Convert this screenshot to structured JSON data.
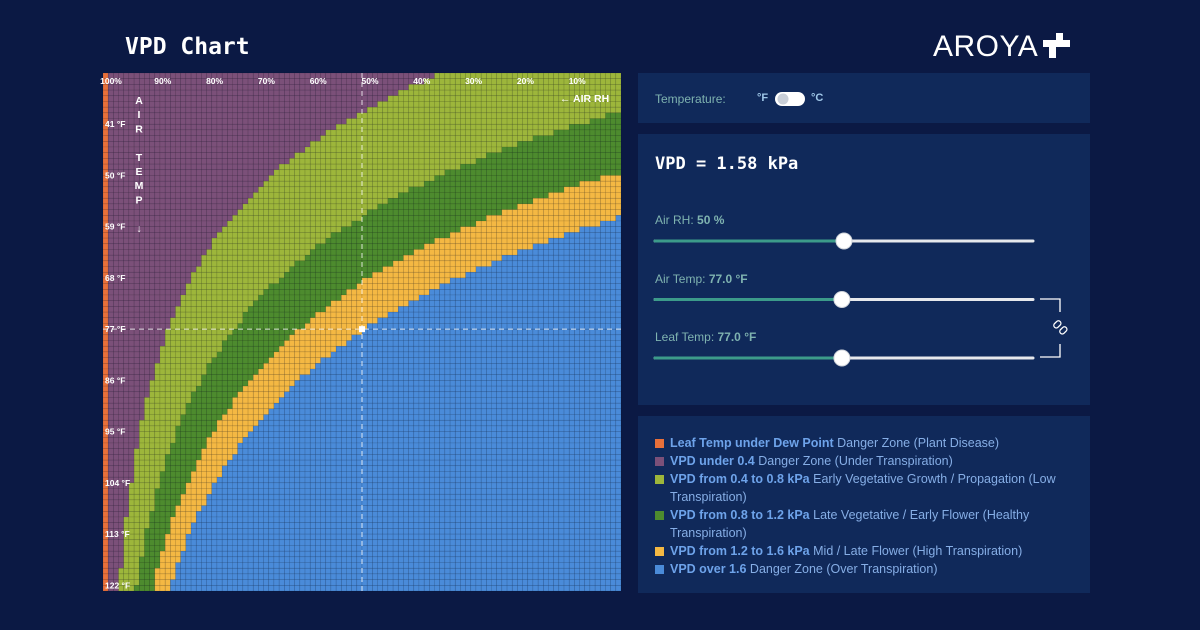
{
  "header": {
    "title": "VPD Chart",
    "logo": "AROYA"
  },
  "chart_data": {
    "type": "heatmap",
    "xlabel": "← AIR RH",
    "ylabel": "AIR TEMP ↓",
    "xlim": [
      100,
      0
    ],
    "ylim": [
      32,
      123
    ],
    "xticks": [
      {
        "value": 100,
        "label": "100%"
      },
      {
        "value": 90,
        "label": "90%"
      },
      {
        "value": 80,
        "label": "80%"
      },
      {
        "value": 70,
        "label": "70%"
      },
      {
        "value": 60,
        "label": "60%"
      },
      {
        "value": 50,
        "label": "50%"
      },
      {
        "value": 40,
        "label": "40%"
      },
      {
        "value": 30,
        "label": "30%"
      },
      {
        "value": 20,
        "label": "20%"
      },
      {
        "value": 10,
        "label": "10%"
      }
    ],
    "yticks": [
      {
        "value": 41,
        "label": "41 °F"
      },
      {
        "value": 50,
        "label": "50 °F"
      },
      {
        "value": 59,
        "label": "59 °F"
      },
      {
        "value": 68,
        "label": "68 °F"
      },
      {
        "value": 77,
        "label": "77 °F"
      },
      {
        "value": 86,
        "label": "86 °F"
      },
      {
        "value": 95,
        "label": "95 °F"
      },
      {
        "value": 104,
        "label": "104 °F"
      },
      {
        "value": 113,
        "label": "113 °F"
      },
      {
        "value": 122,
        "label": "122 °F"
      }
    ],
    "vpd_bands": [
      0.4,
      0.8,
      1.2,
      1.6
    ]
  },
  "settings": {
    "label": "Temperature:",
    "unit_f": "°F",
    "unit_c": "°C"
  },
  "readout": {
    "vpd": "VPD = 1.58 kPa",
    "sliders": [
      {
        "label": "Air RH:",
        "value": 50,
        "value_label": "50 %"
      },
      {
        "label": "Air Temp:",
        "value": 77,
        "value_label": "77.0 °F"
      },
      {
        "label": "Leaf Temp:",
        "value": 77,
        "value_label": "77.0 °F"
      }
    ]
  },
  "legend": [
    {
      "bold": "Leaf Temp under Dew Point",
      "text": "Danger Zone (Plant Disease)",
      "color": "#e8703a"
    },
    {
      "bold": "VPD under 0.4",
      "text": "Danger Zone (Under Transpiration)",
      "color": "#7b5079"
    },
    {
      "bold": "VPD from 0.4 to 0.8 kPa",
      "text": "Early Vegetative Growth / Propagation (Low Transpiration)",
      "color": "#9db63b"
    },
    {
      "bold": "VPD from 0.8 to 1.2 kPa",
      "text": "Late Vegetative / Early Flower (Healthy Transpiration)",
      "color": "#4d8b2e"
    },
    {
      "bold": "VPD from 1.2 to 1.6 kPa",
      "text": "Mid / Late Flower (High Transpiration)",
      "color": "#f4b843"
    },
    {
      "bold": "VPD over 1.6",
      "text": "Danger Zone (Over Transpiration)",
      "color": "#4a8bd9"
    }
  ]
}
